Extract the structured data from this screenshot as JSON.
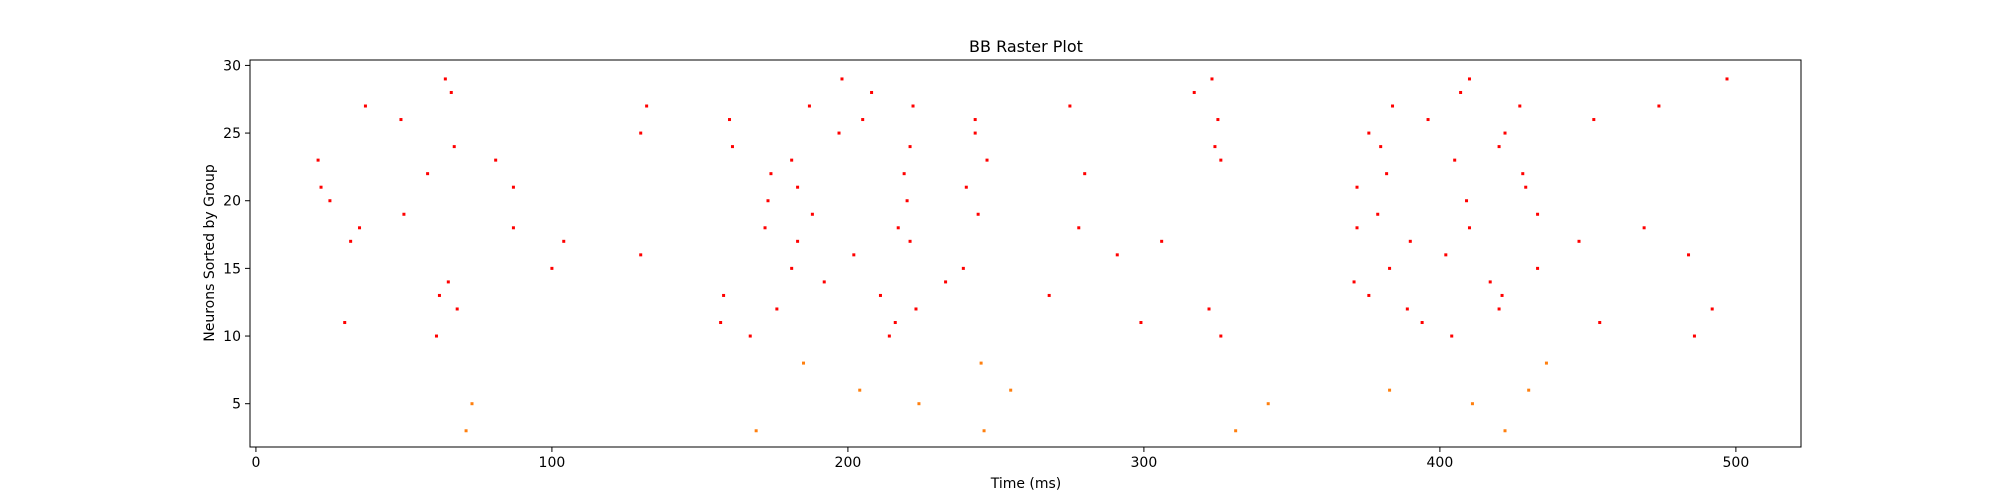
{
  "chart_data": {
    "type": "scatter",
    "title": "BB Raster Plot",
    "xlabel": "Time (ms)",
    "ylabel": "Neurons Sorted by Group",
    "xlim": [
      -2,
      522
    ],
    "ylim": [
      1.8,
      30.4
    ],
    "xticks": [
      0,
      100,
      200,
      300,
      400,
      500
    ],
    "yticks": [
      5,
      10,
      15,
      20,
      25,
      30
    ],
    "grid": false,
    "series": [
      {
        "color": "#ff7f0e",
        "points": [
          [
            71,
            3
          ],
          [
            73,
            5
          ],
          [
            169,
            3
          ],
          [
            185,
            8
          ],
          [
            204,
            6
          ],
          [
            224,
            5
          ],
          [
            245,
            8
          ],
          [
            246,
            3
          ],
          [
            255,
            6
          ],
          [
            331,
            3
          ],
          [
            342,
            5
          ],
          [
            383,
            6
          ],
          [
            411,
            5
          ],
          [
            422,
            3
          ],
          [
            430,
            6
          ],
          [
            436,
            8
          ]
        ]
      },
      {
        "color": "#ff0000",
        "points": [
          [
            21,
            23
          ],
          [
            22,
            21
          ],
          [
            25,
            20
          ],
          [
            30,
            11
          ],
          [
            32,
            17
          ],
          [
            35,
            18
          ],
          [
            37,
            27
          ],
          [
            49,
            26
          ],
          [
            50,
            19
          ],
          [
            58,
            22
          ],
          [
            61,
            10
          ],
          [
            62,
            13
          ],
          [
            64,
            29
          ],
          [
            65,
            14
          ],
          [
            66,
            28
          ],
          [
            67,
            24
          ],
          [
            68,
            12
          ],
          [
            81,
            23
          ],
          [
            87,
            21
          ],
          [
            87,
            18
          ],
          [
            100,
            15
          ],
          [
            104,
            17
          ],
          [
            130,
            16
          ],
          [
            130,
            25
          ],
          [
            132,
            27
          ],
          [
            157,
            11
          ],
          [
            158,
            13
          ],
          [
            160,
            26
          ],
          [
            161,
            24
          ],
          [
            167,
            10
          ],
          [
            172,
            18
          ],
          [
            173,
            20
          ],
          [
            174,
            22
          ],
          [
            176,
            12
          ],
          [
            181,
            23
          ],
          [
            181,
            15
          ],
          [
            183,
            21
          ],
          [
            183,
            17
          ],
          [
            187,
            27
          ],
          [
            188,
            19
          ],
          [
            192,
            14
          ],
          [
            197,
            25
          ],
          [
            198,
            29
          ],
          [
            202,
            16
          ],
          [
            205,
            26
          ],
          [
            208,
            28
          ],
          [
            211,
            13
          ],
          [
            214,
            10
          ],
          [
            216,
            11
          ],
          [
            217,
            18
          ],
          [
            219,
            22
          ],
          [
            220,
            20
          ],
          [
            221,
            24
          ],
          [
            221,
            17
          ],
          [
            222,
            27
          ],
          [
            223,
            12
          ],
          [
            233,
            14
          ],
          [
            239,
            15
          ],
          [
            240,
            21
          ],
          [
            243,
            26
          ],
          [
            243,
            25
          ],
          [
            244,
            19
          ],
          [
            247,
            23
          ],
          [
            268,
            13
          ],
          [
            275,
            27
          ],
          [
            278,
            18
          ],
          [
            280,
            22
          ],
          [
            291,
            16
          ],
          [
            299,
            11
          ],
          [
            306,
            17
          ],
          [
            317,
            28
          ],
          [
            322,
            12
          ],
          [
            323,
            29
          ],
          [
            324,
            24
          ],
          [
            325,
            26
          ],
          [
            326,
            10
          ],
          [
            326,
            23
          ],
          [
            371,
            14
          ],
          [
            372,
            21
          ],
          [
            372,
            18
          ],
          [
            376,
            13
          ],
          [
            376,
            25
          ],
          [
            379,
            19
          ],
          [
            380,
            24
          ],
          [
            382,
            22
          ],
          [
            383,
            15
          ],
          [
            384,
            27
          ],
          [
            389,
            12
          ],
          [
            390,
            17
          ],
          [
            394,
            11
          ],
          [
            396,
            26
          ],
          [
            402,
            16
          ],
          [
            404,
            10
          ],
          [
            405,
            23
          ],
          [
            407,
            28
          ],
          [
            409,
            20
          ],
          [
            410,
            18
          ],
          [
            410,
            29
          ],
          [
            417,
            14
          ],
          [
            420,
            24
          ],
          [
            420,
            12
          ],
          [
            421,
            13
          ],
          [
            422,
            25
          ],
          [
            427,
            27
          ],
          [
            428,
            22
          ],
          [
            429,
            21
          ],
          [
            433,
            19
          ],
          [
            433,
            15
          ],
          [
            447,
            17
          ],
          [
            452,
            26
          ],
          [
            454,
            11
          ],
          [
            469,
            18
          ],
          [
            474,
            27
          ],
          [
            484,
            16
          ],
          [
            486,
            10
          ],
          [
            492,
            12
          ],
          [
            497,
            29
          ]
        ]
      }
    ]
  }
}
